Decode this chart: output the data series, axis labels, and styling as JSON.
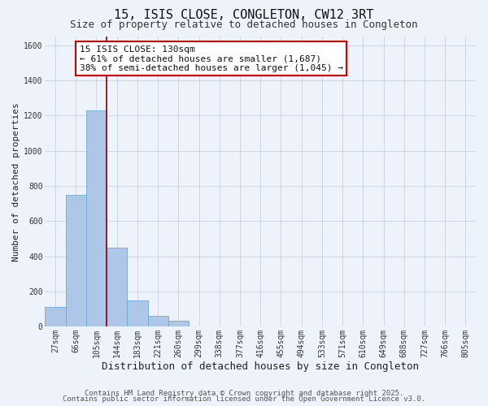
{
  "title": "15, ISIS CLOSE, CONGLETON, CW12 3RT",
  "subtitle": "Size of property relative to detached houses in Congleton",
  "xlabel": "Distribution of detached houses by size in Congleton",
  "ylabel": "Number of detached properties",
  "bar_values": [
    113,
    750,
    1228,
    450,
    150,
    60,
    32,
    0,
    0,
    0,
    0,
    0,
    0,
    0,
    0,
    0,
    0,
    0,
    0,
    0,
    0
  ],
  "bar_labels": [
    "27sqm",
    "66sqm",
    "105sqm",
    "144sqm",
    "183sqm",
    "221sqm",
    "260sqm",
    "299sqm",
    "338sqm",
    "377sqm",
    "416sqm",
    "455sqm",
    "494sqm",
    "533sqm",
    "571sqm",
    "610sqm",
    "649sqm",
    "688sqm",
    "727sqm",
    "766sqm",
    "805sqm"
  ],
  "ylim": [
    0,
    1650
  ],
  "yticks": [
    0,
    200,
    400,
    600,
    800,
    1000,
    1200,
    1400,
    1600
  ],
  "bar_color": "#aec6e8",
  "bar_edge_color": "#6aaad4",
  "vline_color": "#8b0000",
  "annotation_title": "15 ISIS CLOSE: 130sqm",
  "annotation_line1": "← 61% of detached houses are smaller (1,687)",
  "annotation_line2": "38% of semi-detached houses are larger (1,045) →",
  "annotation_box_color": "#ffffff",
  "annotation_box_edge": "#cc0000",
  "background_color": "#eef2fa",
  "footer1": "Contains HM Land Registry data © Crown copyright and database right 2025.",
  "footer2": "Contains public sector information licensed under the Open Government Licence v3.0.",
  "title_fontsize": 11,
  "subtitle_fontsize": 9,
  "xlabel_fontsize": 9,
  "ylabel_fontsize": 8,
  "tick_fontsize": 7,
  "annotation_fontsize": 8,
  "footer_fontsize": 6.5
}
